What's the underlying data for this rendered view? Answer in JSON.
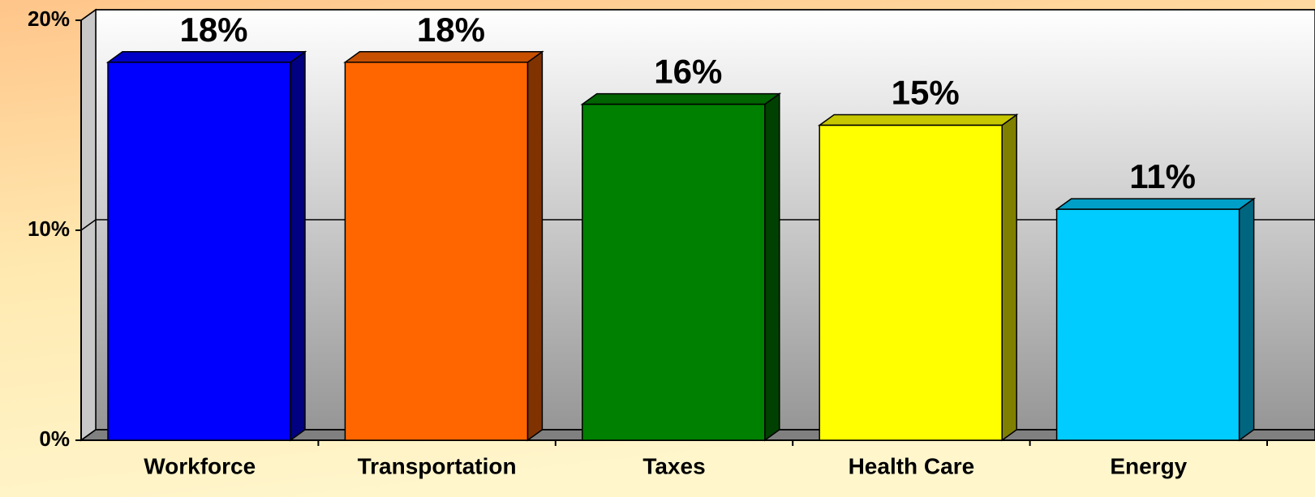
{
  "chart_data": {
    "type": "bar",
    "categories": [
      "Workforce",
      "Transportation",
      "Taxes",
      "Health Care",
      "Energy"
    ],
    "values": [
      18,
      18,
      16,
      15,
      11
    ],
    "value_labels": [
      "18%",
      "18%",
      "16%",
      "15%",
      "11%"
    ],
    "colors": [
      "#0000ff",
      "#ff6600",
      "#008000",
      "#ffff00",
      "#00ccff"
    ],
    "ylim": [
      0,
      20
    ],
    "yticks": [
      {
        "value": 0,
        "label": "0%"
      },
      {
        "value": 10,
        "label": "10%"
      },
      {
        "value": 20,
        "label": "20%"
      }
    ],
    "grid": true
  }
}
